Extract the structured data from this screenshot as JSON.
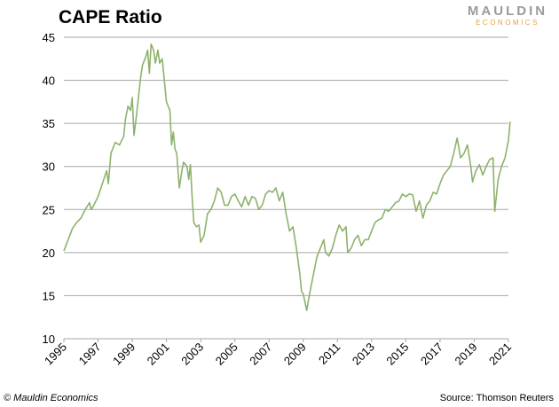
{
  "chart_data": {
    "type": "line",
    "title": "CAPE Ratio",
    "logo": {
      "name": "MAULDIN",
      "sub": "ECONOMICS"
    },
    "footer_left": "© Mauldin Economics",
    "footer_right": "Source: Thomson Reuters",
    "color": "#8db26d",
    "grid": true,
    "xlim": [
      1995,
      2021
    ],
    "xticks": [
      1995,
      1997,
      1999,
      2001,
      2003,
      2005,
      2007,
      2009,
      2011,
      2013,
      2015,
      2017,
      2019,
      2021
    ],
    "ylim": [
      10,
      45
    ],
    "yticks": [
      10,
      15,
      20,
      25,
      30,
      35,
      40,
      45
    ],
    "x": [
      1995.0,
      1995.25,
      1995.5,
      1995.75,
      1996.0,
      1996.25,
      1996.5,
      1996.6,
      1996.75,
      1997.0,
      1997.25,
      1997.5,
      1997.6,
      1997.75,
      1998.0,
      1998.25,
      1998.5,
      1998.6,
      1998.75,
      1998.9,
      1999.0,
      1999.1,
      1999.25,
      1999.5,
      1999.6,
      1999.75,
      1999.9,
      2000.0,
      2000.1,
      2000.25,
      2000.35,
      2000.5,
      2000.6,
      2000.75,
      2000.9,
      2001.0,
      2001.2,
      2001.3,
      2001.4,
      2001.5,
      2001.6,
      2001.75,
      2001.9,
      2002.0,
      2002.2,
      2002.3,
      2002.4,
      2002.5,
      2002.6,
      2002.75,
      2002.9,
      2003.0,
      2003.2,
      2003.4,
      2003.6,
      2003.8,
      2004.0,
      2004.2,
      2004.4,
      2004.6,
      2004.8,
      2005.0,
      2005.2,
      2005.4,
      2005.6,
      2005.8,
      2006.0,
      2006.2,
      2006.4,
      2006.6,
      2006.8,
      2007.0,
      2007.2,
      2007.4,
      2007.6,
      2007.8,
      2008.0,
      2008.2,
      2008.4,
      2008.6,
      2008.8,
      2008.9,
      2009.0,
      2009.2,
      2009.4,
      2009.6,
      2009.8,
      2010.0,
      2010.2,
      2010.3,
      2010.5,
      2010.7,
      2010.9,
      2011.1,
      2011.3,
      2011.5,
      2011.6,
      2011.8,
      2012.0,
      2012.2,
      2012.4,
      2012.6,
      2012.8,
      2013.0,
      2013.2,
      2013.4,
      2013.6,
      2013.8,
      2014.0,
      2014.2,
      2014.4,
      2014.6,
      2014.8,
      2015.0,
      2015.2,
      2015.4,
      2015.6,
      2015.8,
      2016.0,
      2016.2,
      2016.4,
      2016.6,
      2016.8,
      2017.0,
      2017.2,
      2017.4,
      2017.6,
      2017.8,
      2018.0,
      2018.2,
      2018.4,
      2018.6,
      2018.8,
      2018.9,
      2019.1,
      2019.3,
      2019.5,
      2019.7,
      2019.9,
      2020.1,
      2020.2,
      2020.4,
      2020.6,
      2020.8,
      2021.0,
      2021.1
    ],
    "values": [
      20.2,
      21.5,
      22.8,
      23.5,
      24.0,
      25.0,
      25.8,
      25.0,
      25.5,
      26.5,
      28.0,
      29.5,
      28.0,
      31.5,
      32.8,
      32.5,
      33.5,
      35.5,
      37.0,
      36.5,
      38.0,
      33.6,
      36.0,
      40.5,
      41.8,
      42.5,
      43.5,
      40.8,
      44.2,
      43.5,
      42.0,
      43.5,
      42.0,
      42.5,
      39.5,
      37.5,
      36.5,
      32.5,
      34.0,
      32.0,
      31.5,
      27.5,
      29.5,
      30.5,
      30.0,
      28.5,
      30.2,
      26.5,
      23.5,
      23.0,
      23.2,
      21.2,
      22.0,
      24.5,
      25.0,
      26.0,
      27.5,
      27.0,
      25.5,
      25.5,
      26.5,
      26.8,
      26.0,
      25.3,
      26.5,
      25.5,
      26.5,
      26.3,
      25.0,
      25.5,
      26.8,
      27.2,
      27.0,
      27.5,
      26.0,
      27.0,
      24.5,
      22.5,
      23.0,
      20.5,
      17.5,
      15.5,
      15.2,
      13.3,
      15.5,
      17.5,
      19.5,
      20.5,
      21.5,
      20.0,
      19.6,
      20.5,
      22.0,
      23.2,
      22.5,
      23.0,
      20.0,
      20.5,
      21.5,
      22.0,
      20.8,
      21.5,
      21.5,
      22.5,
      23.5,
      23.8,
      24.0,
      25.0,
      24.8,
      25.3,
      25.8,
      26.0,
      26.8,
      26.5,
      26.8,
      26.7,
      24.8,
      26.0,
      24.0,
      25.5,
      26.0,
      27.0,
      26.8,
      28.0,
      29.0,
      29.5,
      30.0,
      31.5,
      33.3,
      31.0,
      31.5,
      32.5,
      30.0,
      28.2,
      29.5,
      30.2,
      29.0,
      30.0,
      30.8,
      31.0,
      24.8,
      28.5,
      30.0,
      31.0,
      33.0,
      35.2
    ]
  }
}
